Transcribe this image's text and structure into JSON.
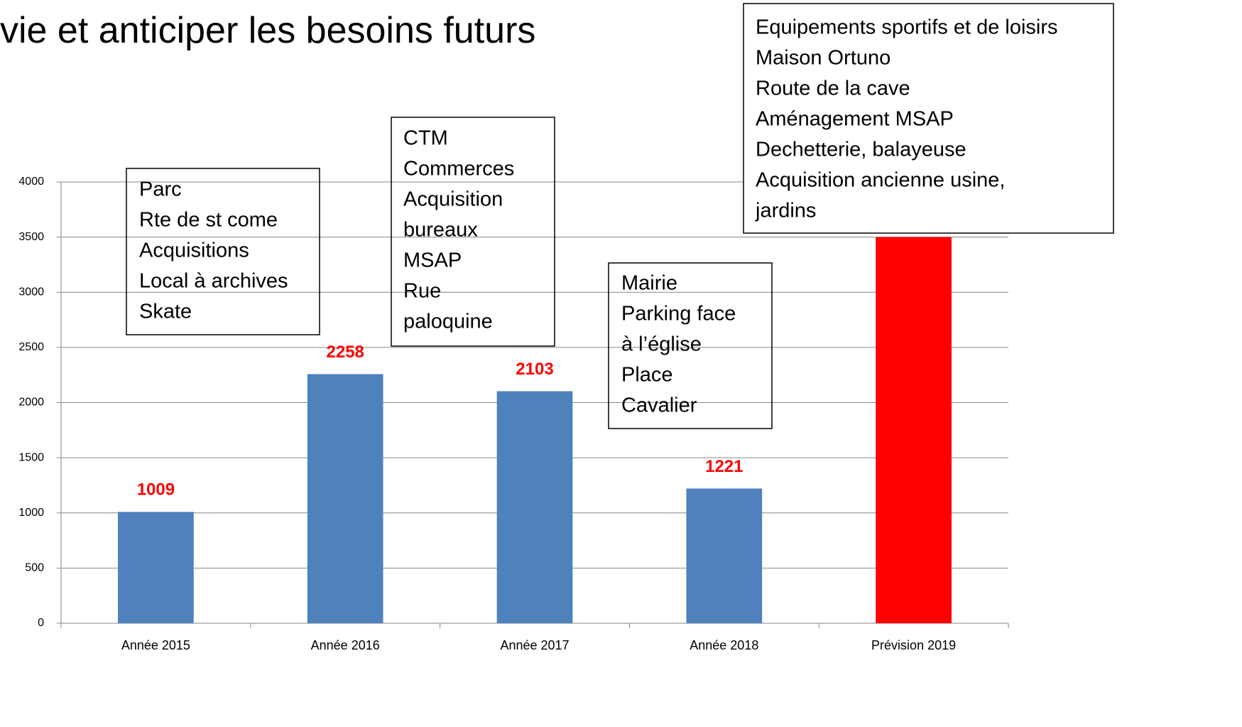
{
  "chart_data": {
    "type": "bar",
    "title": "vie et anticiper les besoins futurs",
    "categories": [
      "Année 2015",
      "Année 2016",
      "Année 2017",
      "Année 2018",
      "Prévision 2019"
    ],
    "values": [
      1009,
      2258,
      2103,
      1221,
      3500
    ],
    "colors": [
      "#4f81bd",
      "#4f81bd",
      "#4f81bd",
      "#4f81bd",
      "#ff0000"
    ],
    "ylim": [
      0,
      4000
    ],
    "yticks": [
      0,
      500,
      1000,
      1500,
      2000,
      2500,
      3000,
      3500,
      4000
    ],
    "grid": true,
    "annotations": [
      {
        "lines": [
          "Parc",
          "Rte de st come",
          "Acquisitions",
          "Local à archives",
          "Skate"
        ]
      },
      {
        "lines": [
          "CTM",
          "Commerces",
          "Acquisition",
          "bureaux",
          "MSAP",
          "Rue",
          "paloquine"
        ]
      },
      {
        "lines": [
          "Mairie",
          "Parking face",
          "à l’église",
          "Place",
          "Cavalier"
        ]
      },
      {
        "lines": [
          "Equipements sportifs et de loisirs",
          "Maison Ortuno",
          "Route de la cave",
          "Aménagement MSAP",
          "Dechetterie, balayeuse",
          "Acquisition ancienne  usine,",
          "jardins"
        ]
      }
    ]
  }
}
